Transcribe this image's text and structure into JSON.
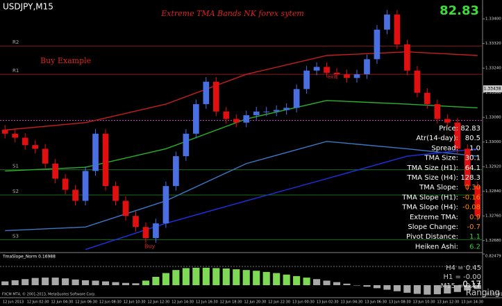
{
  "chart_data": {
    "type": "candlestick",
    "symbol": "USDJPY,M15",
    "title": "Extreme TMA Bands NK forex sytem",
    "score": "82.83",
    "score_color": "#3cdc3c",
    "annotation": "Buy Example",
    "exit_label": "exit",
    "buy_label": "Buy",
    "up_color": "#4a6fe0",
    "down_color": "#e01010",
    "open": [
      1.3304,
      1.33027,
      1.33014,
      1.3299,
      1.32978,
      1.3293,
      1.32881,
      1.32845,
      1.32809,
      1.32906,
      1.33027,
      1.32857,
      1.32809,
      1.3276,
      1.32724,
      1.32688,
      1.32736,
      1.32857,
      1.32954,
      1.33027,
      1.33123,
      1.33196,
      1.33099,
      1.33075,
      1.33063,
      1.33087,
      1.33099,
      1.33099,
      1.33104,
      1.33111,
      1.33172,
      1.33232,
      1.33244,
      1.33225,
      1.3322,
      1.33208,
      1.3322,
      1.33269,
      1.33365,
      1.33414,
      1.33317,
      1.33232,
      1.3316,
      1.33123,
      1.33075,
      1.33063,
      1.32978,
      1.32857
    ],
    "high": [
      1.33055,
      1.33042,
      1.33029,
      1.33005,
      1.32993,
      1.32945,
      1.32896,
      1.3286,
      1.32921,
      1.33042,
      1.33042,
      1.32872,
      1.32824,
      1.32775,
      1.32739,
      1.32751,
      1.32872,
      1.32969,
      1.33042,
      1.33138,
      1.33211,
      1.33211,
      1.33114,
      1.3309,
      1.33102,
      1.33114,
      1.33114,
      1.33119,
      1.33126,
      1.33187,
      1.33247,
      1.33259,
      1.33259,
      1.3324,
      1.33235,
      1.33235,
      1.33284,
      1.3338,
      1.33429,
      1.33429,
      1.33332,
      1.33247,
      1.33175,
      1.33138,
      1.3309,
      1.33078,
      1.32993,
      1.32872
    ],
    "low": [
      1.33012,
      1.32999,
      1.32975,
      1.32963,
      1.32915,
      1.32866,
      1.3283,
      1.32794,
      1.32794,
      1.32891,
      1.32842,
      1.32794,
      1.32745,
      1.32709,
      1.32673,
      1.32673,
      1.32721,
      1.32842,
      1.32939,
      1.33012,
      1.33108,
      1.33084,
      1.3306,
      1.33048,
      1.33048,
      1.33072,
      1.33084,
      1.33084,
      1.33089,
      1.33096,
      1.33157,
      1.33217,
      1.3321,
      1.33205,
      1.33193,
      1.33193,
      1.33205,
      1.33254,
      1.3335,
      1.33302,
      1.33217,
      1.33145,
      1.33108,
      1.3306,
      1.33048,
      1.32963,
      1.32842,
      1.32745
    ],
    "close": [
      1.33027,
      1.33014,
      1.3299,
      1.32978,
      1.3293,
      1.32881,
      1.32845,
      1.32809,
      1.32906,
      1.33027,
      1.32857,
      1.32809,
      1.3276,
      1.32724,
      1.32688,
      1.32736,
      1.32857,
      1.32954,
      1.33027,
      1.33123,
      1.33196,
      1.33099,
      1.33075,
      1.33063,
      1.33087,
      1.33099,
      1.33099,
      1.33104,
      1.33111,
      1.33172,
      1.33232,
      1.33244,
      1.33225,
      1.3322,
      1.33208,
      1.3322,
      1.33269,
      1.33365,
      1.33414,
      1.33317,
      1.33232,
      1.3316,
      1.33123,
      1.33075,
      1.33063,
      1.32978,
      1.32857,
      1.3276
    ],
    "ylim": [
      1.3265,
      1.3345
    ],
    "yticks": [
      {
        "value": 1.3268,
        "label": "1.32680"
      },
      {
        "value": 1.3276,
        "label": "1.32760"
      },
      {
        "value": 1.3284,
        "label": "1.32840"
      },
      {
        "value": 1.3292,
        "label": "1.32920"
      },
      {
        "value": 1.33,
        "label": "1.33000"
      },
      {
        "value": 1.3308,
        "label": "1.33080"
      },
      {
        "value": 1.3316,
        "label": "1.33160"
      },
      {
        "value": 1.3324,
        "label": "1.33240"
      },
      {
        "value": 1.3332,
        "label": "1.33320"
      },
      {
        "value": 1.334,
        "label": "1.33400"
      }
    ],
    "x_labels": [
      "12 Jun 2013",
      "12 Jun 02:30",
      "12 Jun 04:30",
      "12 Jun 06:30",
      "12 Jun 08:30",
      "12 Jun 10:30",
      "12 Jun 12:30",
      "12 Jun 14:30",
      "12 Jun 16:30",
      "12 Jun 18:30",
      "12 Jun 20:30",
      "12 Jun 22:30",
      "13 Jun 00:30",
      "13 Jun 02:30",
      "13 Jun 04:30",
      "13 Jun 06:30",
      "13 Jun 08:30",
      "13 Jun 10:30",
      "13 Jun 12:30",
      "13 Jun 14:30"
    ],
    "band_x": [
      0,
      8,
      16,
      24,
      32,
      40,
      47
    ],
    "bands": [
      {
        "color": "#c81e1e",
        "values": [
          1.33039,
          1.33063,
          1.33123,
          1.3322,
          1.33281,
          1.33293,
          1.33281
        ]
      },
      {
        "color": "#28b428",
        "values": [
          1.32906,
          1.32918,
          1.32978,
          1.33075,
          1.33135,
          1.33123,
          1.33111
        ]
      },
      {
        "color": "#3c78c8",
        "values": [
          1.32712,
          1.32724,
          1.32809,
          1.3293,
          1.33002,
          1.32978,
          1.32954
        ]
      },
      {
        "color": "#1e32e6",
        "values": [
          null,
          1.32651,
          1.32736,
          1.32809,
          1.32881,
          1.32954,
          1.32978
        ]
      }
    ],
    "levels": [
      {
        "label": "R2",
        "value": 1.33312,
        "color": "#8b1a1a"
      },
      {
        "label": "R1",
        "value": 1.3322,
        "color": "#8b1a1a"
      },
      {
        "label": "S1",
        "value": 1.3291,
        "color": "#1a6b1a"
      },
      {
        "label": "S2",
        "value": 1.32828,
        "color": "#1a6b1a"
      },
      {
        "label": "S3",
        "value": 1.32683,
        "color": "#1a6b1a"
      }
    ],
    "dotted_level": 1.3307,
    "price_tag": "1.33438",
    "info": [
      {
        "label": "Price:",
        "value": "82.83",
        "color": "#ffffff"
      },
      {
        "label": "Atr(14-day):",
        "value": "80.5",
        "color": "#ffffff"
      },
      {
        "label": "Spread:",
        "value": "1.0",
        "color": "#ffffff"
      },
      {
        "label": "TMA Size:",
        "value": "30.1",
        "color": "#ffffff"
      },
      {
        "label": "TMA Size (H1):",
        "value": "64.1",
        "color": "#ffffff"
      },
      {
        "label": "TMA Size (H4):",
        "value": "128.3",
        "color": "#ffffff"
      },
      {
        "label": "TMA Slope:",
        "value": "0.30",
        "color": "#ff8c00"
      },
      {
        "label": "TMA Slope (H1):",
        "value": "-0.16",
        "color": "#ff8c00"
      },
      {
        "label": "TMA Slope (H4):",
        "value": "-0.08",
        "color": "#ff8c00"
      },
      {
        "label": "Extreme TMA:",
        "value": "0.9",
        "color": "#ff8c00"
      },
      {
        "label": "Slope Change:",
        "value": "-0.7",
        "color": "#ff8c00"
      },
      {
        "label": "Pivot Distance:",
        "value": "1.1",
        "color": "#32cd32"
      },
      {
        "label": "Heiken Ashi:",
        "value": "6.2",
        "color": "#32cd32"
      }
    ],
    "sub": {
      "title": "TmaSlope_Norm 0.16988",
      "ylim": [
        -0.31201,
        0.82479
      ],
      "yticks": [
        -0.31201,
        0.82479
      ],
      "series": [
        {
          "color": "#a8a8a8",
          "values": [
            0.1,
            0.13,
            0.16,
            0.19,
            0.2,
            0.2,
            0.18,
            0.15,
            0.13,
            0.12,
            0.1,
            0.08,
            0.06,
            0.05,
            null,
            null,
            null,
            null,
            null,
            null,
            null,
            null,
            null,
            null,
            null,
            null,
            null,
            null,
            null,
            null,
            null,
            0.16,
            0.12,
            0.08,
            0.04,
            0.0,
            -0.04,
            -0.08,
            -0.12,
            -0.16,
            -0.2,
            -0.23,
            -0.25,
            -0.24,
            -0.22,
            -0.18,
            -0.14,
            -0.1
          ]
        },
        {
          "color": "#7ed957",
          "values": [
            null,
            null,
            null,
            null,
            null,
            null,
            null,
            null,
            null,
            null,
            null,
            null,
            null,
            null,
            0.12,
            0.22,
            0.32,
            0.4,
            0.45,
            0.46,
            0.46,
            0.45,
            0.44,
            0.42,
            0.4,
            0.38,
            0.35,
            0.32,
            0.28,
            0.24,
            0.2,
            null,
            null,
            null,
            null,
            null,
            null,
            null,
            null,
            null,
            null,
            null,
            null,
            null,
            null,
            null,
            null,
            null
          ]
        }
      ],
      "readouts": [
        "H4 = 0.45",
        "H1 = -0.00",
        "M15 = 0.17"
      ],
      "big_value": "0.17",
      "status": "Ranging"
    },
    "copyright": "FXCM MT4, © 2001-2013, MetaQuotes Software Corp."
  }
}
